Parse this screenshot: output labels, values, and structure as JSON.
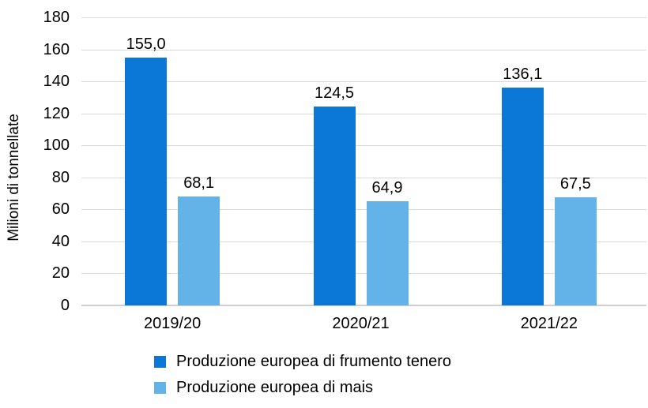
{
  "chart_data": {
    "type": "bar",
    "title": "",
    "ylabel": "Milioni di tonnellate",
    "xlabel": "",
    "categories": [
      "2019/20",
      "2020/21",
      "2021/22"
    ],
    "series": [
      {
        "name": "Produzione europea di frumento tenero",
        "color": "#0b78d8",
        "values": [
          155.0,
          124.5,
          136.1
        ],
        "value_labels": [
          "155,0",
          "124,5",
          "136,1"
        ]
      },
      {
        "name": "Produzione europea di mais",
        "color": "#63b2e8",
        "values": [
          68.1,
          64.9,
          67.5
        ],
        "value_labels": [
          "68,1",
          "64,9",
          "67,5"
        ]
      }
    ],
    "ylim": [
      0,
      180
    ],
    "yticks": [
      0,
      20,
      40,
      60,
      80,
      100,
      120,
      140,
      160,
      180
    ],
    "ytick_labels": [
      "0",
      "20",
      "40",
      "60",
      "80",
      "100",
      "120",
      "140",
      "160",
      "180"
    ],
    "grid": true,
    "legend_position": "bottom-left"
  },
  "colors": {
    "grid": "#d9d9d9",
    "axis": "#cfcfcf",
    "text": "#000000",
    "background": "#ffffff"
  }
}
